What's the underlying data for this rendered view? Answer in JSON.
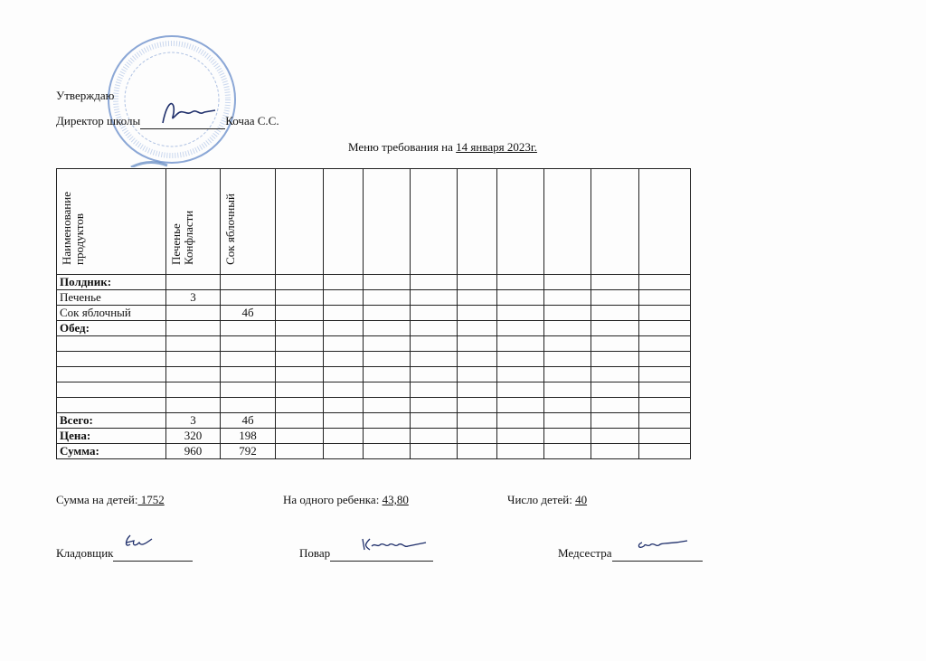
{
  "approval": {
    "approve_label": "Утверждаю",
    "director_label": "Директор школы",
    "director_name": "Кочаа С.С."
  },
  "title": {
    "prefix": "Меню требования на ",
    "date": "14 января 2023г."
  },
  "table": {
    "headers": [
      "Наименование продуктов",
      "Печенье Конфласти",
      "Сок яблочный",
      "",
      "",
      "",
      "",
      "",
      "",
      "",
      "",
      ""
    ],
    "rows": [
      {
        "label": "Полдник:",
        "bold": true,
        "values": [
          "",
          ""
        ]
      },
      {
        "label": "Печенье",
        "bold": false,
        "values": [
          "3",
          ""
        ]
      },
      {
        "label": "Сок яблочный",
        "bold": false,
        "values": [
          "",
          "4б"
        ]
      },
      {
        "label": "Обед:",
        "bold": true,
        "values": [
          "",
          ""
        ]
      },
      {
        "label": "",
        "bold": false,
        "values": [
          "",
          ""
        ]
      },
      {
        "label": "",
        "bold": false,
        "values": [
          "",
          ""
        ]
      },
      {
        "label": "",
        "bold": false,
        "values": [
          "",
          ""
        ]
      },
      {
        "label": "",
        "bold": false,
        "values": [
          "",
          ""
        ]
      },
      {
        "label": "",
        "bold": false,
        "values": [
          "",
          ""
        ]
      },
      {
        "label": "Всего:",
        "bold": true,
        "values": [
          "3",
          "4б"
        ]
      },
      {
        "label": "Цена:",
        "bold": true,
        "values": [
          "320",
          "198"
        ]
      },
      {
        "label": "Сумма:",
        "bold": true,
        "values": [
          "960",
          "792"
        ]
      }
    ]
  },
  "summary": {
    "total_label": "Сумма на детей:",
    "total_value": " 1752",
    "per_child_label": "На одного ребенка: ",
    "per_child_value": "43,80",
    "children_label": "Число детей: ",
    "children_value": "40"
  },
  "signatures": {
    "storekeeper_label": "Кладовщик",
    "cook_label": "Повар",
    "nurse_label": "Медсестра"
  },
  "stamp": {
    "color": "#3f6fb5",
    "description_icon": "school-seal-stamp"
  }
}
